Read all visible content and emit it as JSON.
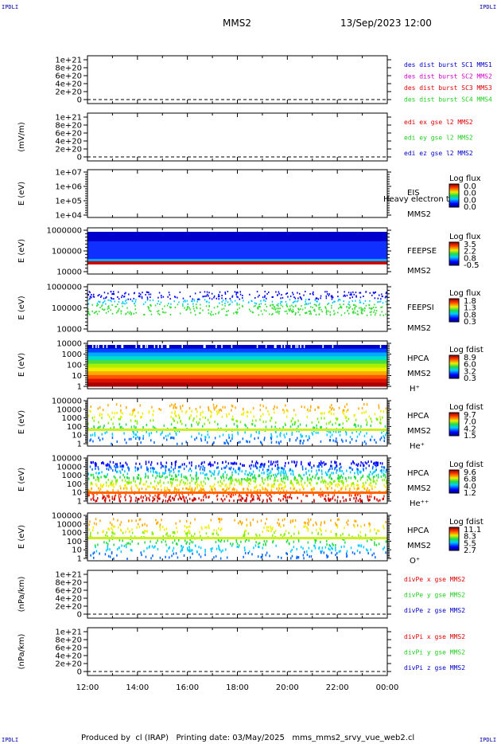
{
  "corner_labels": {
    "tl": "IPDLI",
    "tr": "IPDLI",
    "bl": "IPDLI",
    "br": "IPDLI"
  },
  "header": {
    "spacecraft": "MMS2",
    "datetime": "13/Sep/2023 12:00"
  },
  "footer": {
    "produced_by": "Produced by  cl (IRAP)",
    "printing_date": "Printing date: 03/May/2025",
    "script": "mms_mms2_srvy_vue_web2.cl"
  },
  "colors": {
    "black": "#000000",
    "red": "#dd0000",
    "green": "#22cc22",
    "blue": "#0000cc",
    "magenta": "#cc00cc"
  },
  "chart_data": [
    {
      "type": "line",
      "name": "des_dist",
      "ylabel": "",
      "yticks": [
        "0",
        "2e+20",
        "4e+20",
        "6e+20",
        "8e+20",
        "1e+21"
      ],
      "legend": [
        {
          "text": "des dist burst SC1 MMS1",
          "color": "#0000cc"
        },
        {
          "text": "des dist burst SC2 MMS2",
          "color": "#cc00cc"
        },
        {
          "text": "des dist burst SC3 MMS3",
          "color": "#dd0000"
        },
        {
          "text": "des dist burst SC4 MMS4",
          "color": "#22cc22"
        }
      ]
    },
    {
      "type": "line",
      "name": "edi_e",
      "ylabel": "(mV/m)",
      "yticks": [
        "0",
        "2e+20",
        "4e+20",
        "6e+20",
        "8e+20",
        "1e+21"
      ],
      "legend": [
        {
          "text": "edi ex gse l2 MMS2",
          "color": "#dd0000"
        },
        {
          "text": "edi ey gse l2 MMS2",
          "color": "#22cc22"
        },
        {
          "text": "edi ez gse l2 MMS2",
          "color": "#0000cc"
        }
      ]
    },
    {
      "type": "heatmap",
      "name": "eis",
      "ylabel": "E (eV)",
      "yticks": [
        "1e+04",
        "1e+05",
        "1e+06",
        "1e+07"
      ],
      "labels": [
        "EIS",
        "MMS2"
      ],
      "overlay": "Heavy electron to",
      "cbar_title": "Log flux",
      "cbar_ticks": [
        "0.0",
        "0.0",
        "0.0",
        "0.0"
      ]
    },
    {
      "type": "heatmap",
      "name": "feepse",
      "ylabel": "E (eV)",
      "yticks": [
        "10000",
        "100000",
        "1000000"
      ],
      "labels": [
        "FEEPSE",
        "MMS2"
      ],
      "cbar_title": "Log flux",
      "cbar_ticks": [
        "3.5",
        "2.2",
        "0.8",
        "-0.5"
      ]
    },
    {
      "type": "heatmap",
      "name": "feepsi",
      "ylabel": "E (eV)",
      "yticks": [
        "10000",
        "100000",
        "1000000"
      ],
      "labels": [
        "FEEPSI",
        "MMS2"
      ],
      "cbar_title": "Log flux",
      "cbar_ticks": [
        "1.8",
        "1.3",
        "0.8",
        "0.3"
      ]
    },
    {
      "type": "heatmap",
      "name": "hpca_h",
      "ylabel": "E (eV)",
      "yticks": [
        "1",
        "10",
        "100",
        "1000",
        "10000"
      ],
      "labels": [
        "HPCA",
        "MMS2",
        "H⁺"
      ],
      "cbar_title": "Log fdist",
      "cbar_ticks": [
        "8.9",
        "6.0",
        "3.2",
        "0.3"
      ]
    },
    {
      "type": "heatmap",
      "name": "hpca_he",
      "ylabel": "E (eV)",
      "yticks": [
        "1",
        "10",
        "100",
        "1000",
        "10000",
        "100000"
      ],
      "labels": [
        "HPCA",
        "MMS2",
        "He⁺"
      ],
      "cbar_title": "Log fdist",
      "cbar_ticks": [
        "9.7",
        "7.0",
        "4.2",
        "1.5"
      ]
    },
    {
      "type": "heatmap",
      "name": "hpca_hepp",
      "ylabel": "E (eV)",
      "yticks": [
        "1",
        "10",
        "100",
        "1000",
        "10000",
        "100000"
      ],
      "labels": [
        "HPCA",
        "MMS2",
        "He⁺⁺"
      ],
      "cbar_title": "Log fdist",
      "cbar_ticks": [
        "9.6",
        "6.8",
        "4.0",
        "1.2"
      ]
    },
    {
      "type": "heatmap",
      "name": "hpca_o",
      "ylabel": "E (eV)",
      "yticks": [
        "1",
        "10",
        "100",
        "1000",
        "10000",
        "100000"
      ],
      "labels": [
        "HPCA",
        "MMS2",
        "O⁺"
      ],
      "cbar_title": "Log fdist",
      "cbar_ticks": [
        "11.1",
        "8.3",
        "5.5",
        "2.7"
      ]
    },
    {
      "type": "line",
      "name": "divpe",
      "ylabel": "(nPa/km)",
      "yticks": [
        "0",
        "2e+20",
        "4e+20",
        "6e+20",
        "8e+20",
        "1e+21"
      ],
      "legend": [
        {
          "text": "divPe x gse MMS2",
          "color": "#dd0000"
        },
        {
          "text": "divPe y gse MMS2",
          "color": "#22cc22"
        },
        {
          "text": "divPe z gse MMS2",
          "color": "#0000cc"
        }
      ]
    },
    {
      "type": "line",
      "name": "divpi",
      "ylabel": "(nPa/km)",
      "yticks": [
        "0",
        "2e+20",
        "4e+20",
        "6e+20",
        "8e+20",
        "1e+21"
      ],
      "legend": [
        {
          "text": "divPi x gse MMS2",
          "color": "#dd0000"
        },
        {
          "text": "divPi y gse MMS2",
          "color": "#22cc22"
        },
        {
          "text": "divPi z gse MMS2",
          "color": "#0000cc"
        }
      ]
    }
  ],
  "xaxis": {
    "ticks": [
      "12:00",
      "14:00",
      "16:00",
      "18:00",
      "20:00",
      "22:00",
      "00:00"
    ]
  }
}
